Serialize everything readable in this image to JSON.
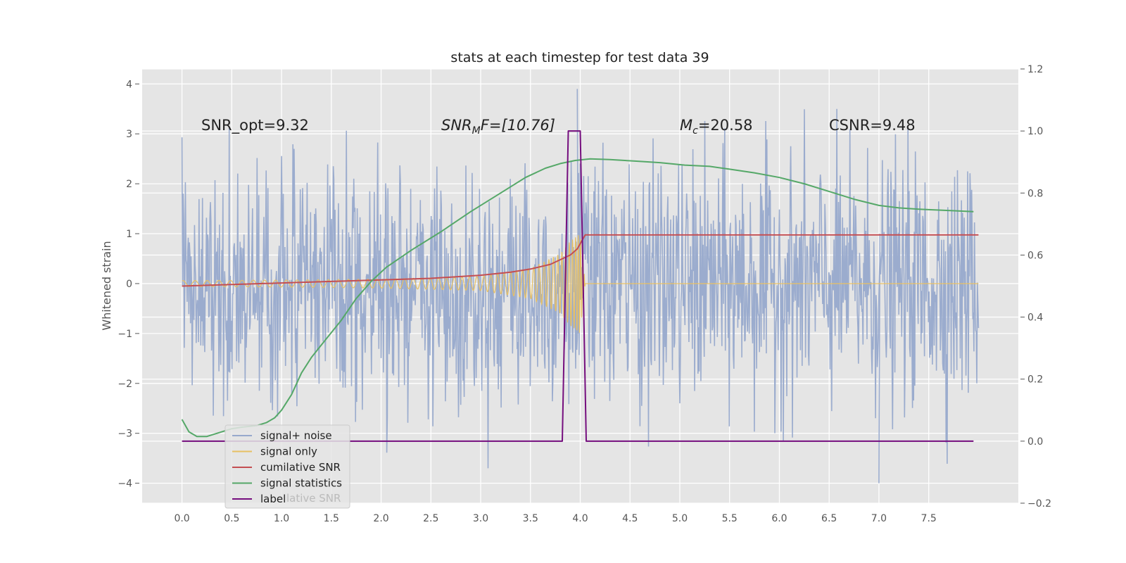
{
  "chart_data": {
    "type": "line",
    "title": "stats at each timestep for test data 39",
    "ylabel": "Whitened strain",
    "xlim": [
      -0.4,
      8.4
    ],
    "ylim": [
      -4.4,
      4.3
    ],
    "y2lim": [
      -0.2,
      1.2
    ],
    "x_ticks": [
      "0.0",
      "0.5",
      "1.0",
      "1.5",
      "2.0",
      "2.5",
      "3.0",
      "3.5",
      "4.0",
      "4.5",
      "5.0",
      "5.5",
      "6.0",
      "6.5",
      "7.0",
      "7.5"
    ],
    "y_ticks": [
      "−4",
      "−3",
      "−2",
      "−1",
      "0",
      "1",
      "2",
      "3",
      "4"
    ],
    "y2_ticks": [
      "−0.2",
      "0.0",
      "0.2",
      "0.4",
      "0.6",
      "0.8",
      "1.0",
      "1.2"
    ],
    "grid": true,
    "legend_position": "lower-left",
    "annotations": {
      "snr_opt": "SNR_opt=9.32",
      "snr_mf_main": "SNR",
      "snr_mf_sub": "M",
      "snr_mf_rest": "F=[10.76]",
      "mc_main": "M",
      "mc_sub": "c",
      "mc_rest": "=20.58",
      "csnr": "CSNR=9.48"
    },
    "legend": [
      {
        "label": "signal+ noise",
        "color": "#97a9cc"
      },
      {
        "label": "signal only",
        "color": "#e8c063"
      },
      {
        "label": "cumilative SNR",
        "color": "#c44e52"
      },
      {
        "label": "signal statistics",
        "color": "#55a868"
      },
      {
        "label": "label",
        "color": "#750e7e"
      }
    ],
    "legend_ghost_text": "lative SNR",
    "series": [
      {
        "name": "signal+ noise",
        "axis": "left",
        "color": "#97a9cc",
        "x_range": [
          0.0,
          8.0
        ],
        "envelope_max": [
          3.9,
          -4.0
        ],
        "typical_amplitude": 1.6
      },
      {
        "name": "signal only",
        "axis": "left",
        "color": "#e8c063",
        "x": [
          0.0,
          1.0,
          2.0,
          3.0,
          3.5,
          3.8,
          3.9,
          4.0,
          4.05
        ],
        "amplitude": [
          0.06,
          0.07,
          0.09,
          0.14,
          0.3,
          0.6,
          0.85,
          1.0,
          0.0
        ]
      },
      {
        "name": "cumilative SNR",
        "axis": "right",
        "color": "#c44e52",
        "x": [
          0.0,
          0.5,
          1.0,
          1.5,
          2.0,
          2.5,
          3.0,
          3.3,
          3.5,
          3.7,
          3.8,
          3.9,
          3.97,
          4.05,
          8.0
        ],
        "y": [
          0.5,
          0.505,
          0.51,
          0.515,
          0.52,
          0.525,
          0.535,
          0.545,
          0.555,
          0.57,
          0.585,
          0.6,
          0.62,
          0.665,
          0.665
        ]
      },
      {
        "name": "signal statistics",
        "axis": "right",
        "color": "#55a868",
        "x": [
          0.0,
          0.07,
          0.15,
          0.25,
          0.4,
          0.5,
          0.6,
          0.75,
          0.85,
          0.93,
          1.0,
          1.1,
          1.2,
          1.3,
          1.45,
          1.6,
          1.75,
          1.9,
          2.05,
          2.3,
          2.6,
          2.9,
          3.2,
          3.45,
          3.65,
          3.8,
          3.95,
          4.1,
          4.3,
          4.55,
          4.8,
          5.05,
          5.3,
          5.5,
          5.75,
          6.0,
          6.25,
          6.5,
          6.75,
          7.0,
          7.2,
          7.4,
          7.6,
          7.8,
          7.95
        ],
        "y": [
          0.07,
          0.03,
          0.015,
          0.015,
          0.03,
          0.04,
          0.045,
          0.05,
          0.06,
          0.075,
          0.1,
          0.15,
          0.22,
          0.27,
          0.33,
          0.39,
          0.46,
          0.515,
          0.56,
          0.615,
          0.675,
          0.74,
          0.8,
          0.85,
          0.88,
          0.895,
          0.905,
          0.91,
          0.908,
          0.903,
          0.898,
          0.89,
          0.886,
          0.877,
          0.865,
          0.85,
          0.83,
          0.805,
          0.78,
          0.76,
          0.752,
          0.748,
          0.745,
          0.742,
          0.74
        ]
      },
      {
        "name": "label",
        "axis": "right",
        "color": "#750e7e",
        "x": [
          0.0,
          3.82,
          3.88,
          4.0,
          4.06,
          7.95
        ],
        "y": [
          0.0,
          0.0,
          1.0,
          1.0,
          0.0,
          0.0
        ]
      }
    ]
  }
}
